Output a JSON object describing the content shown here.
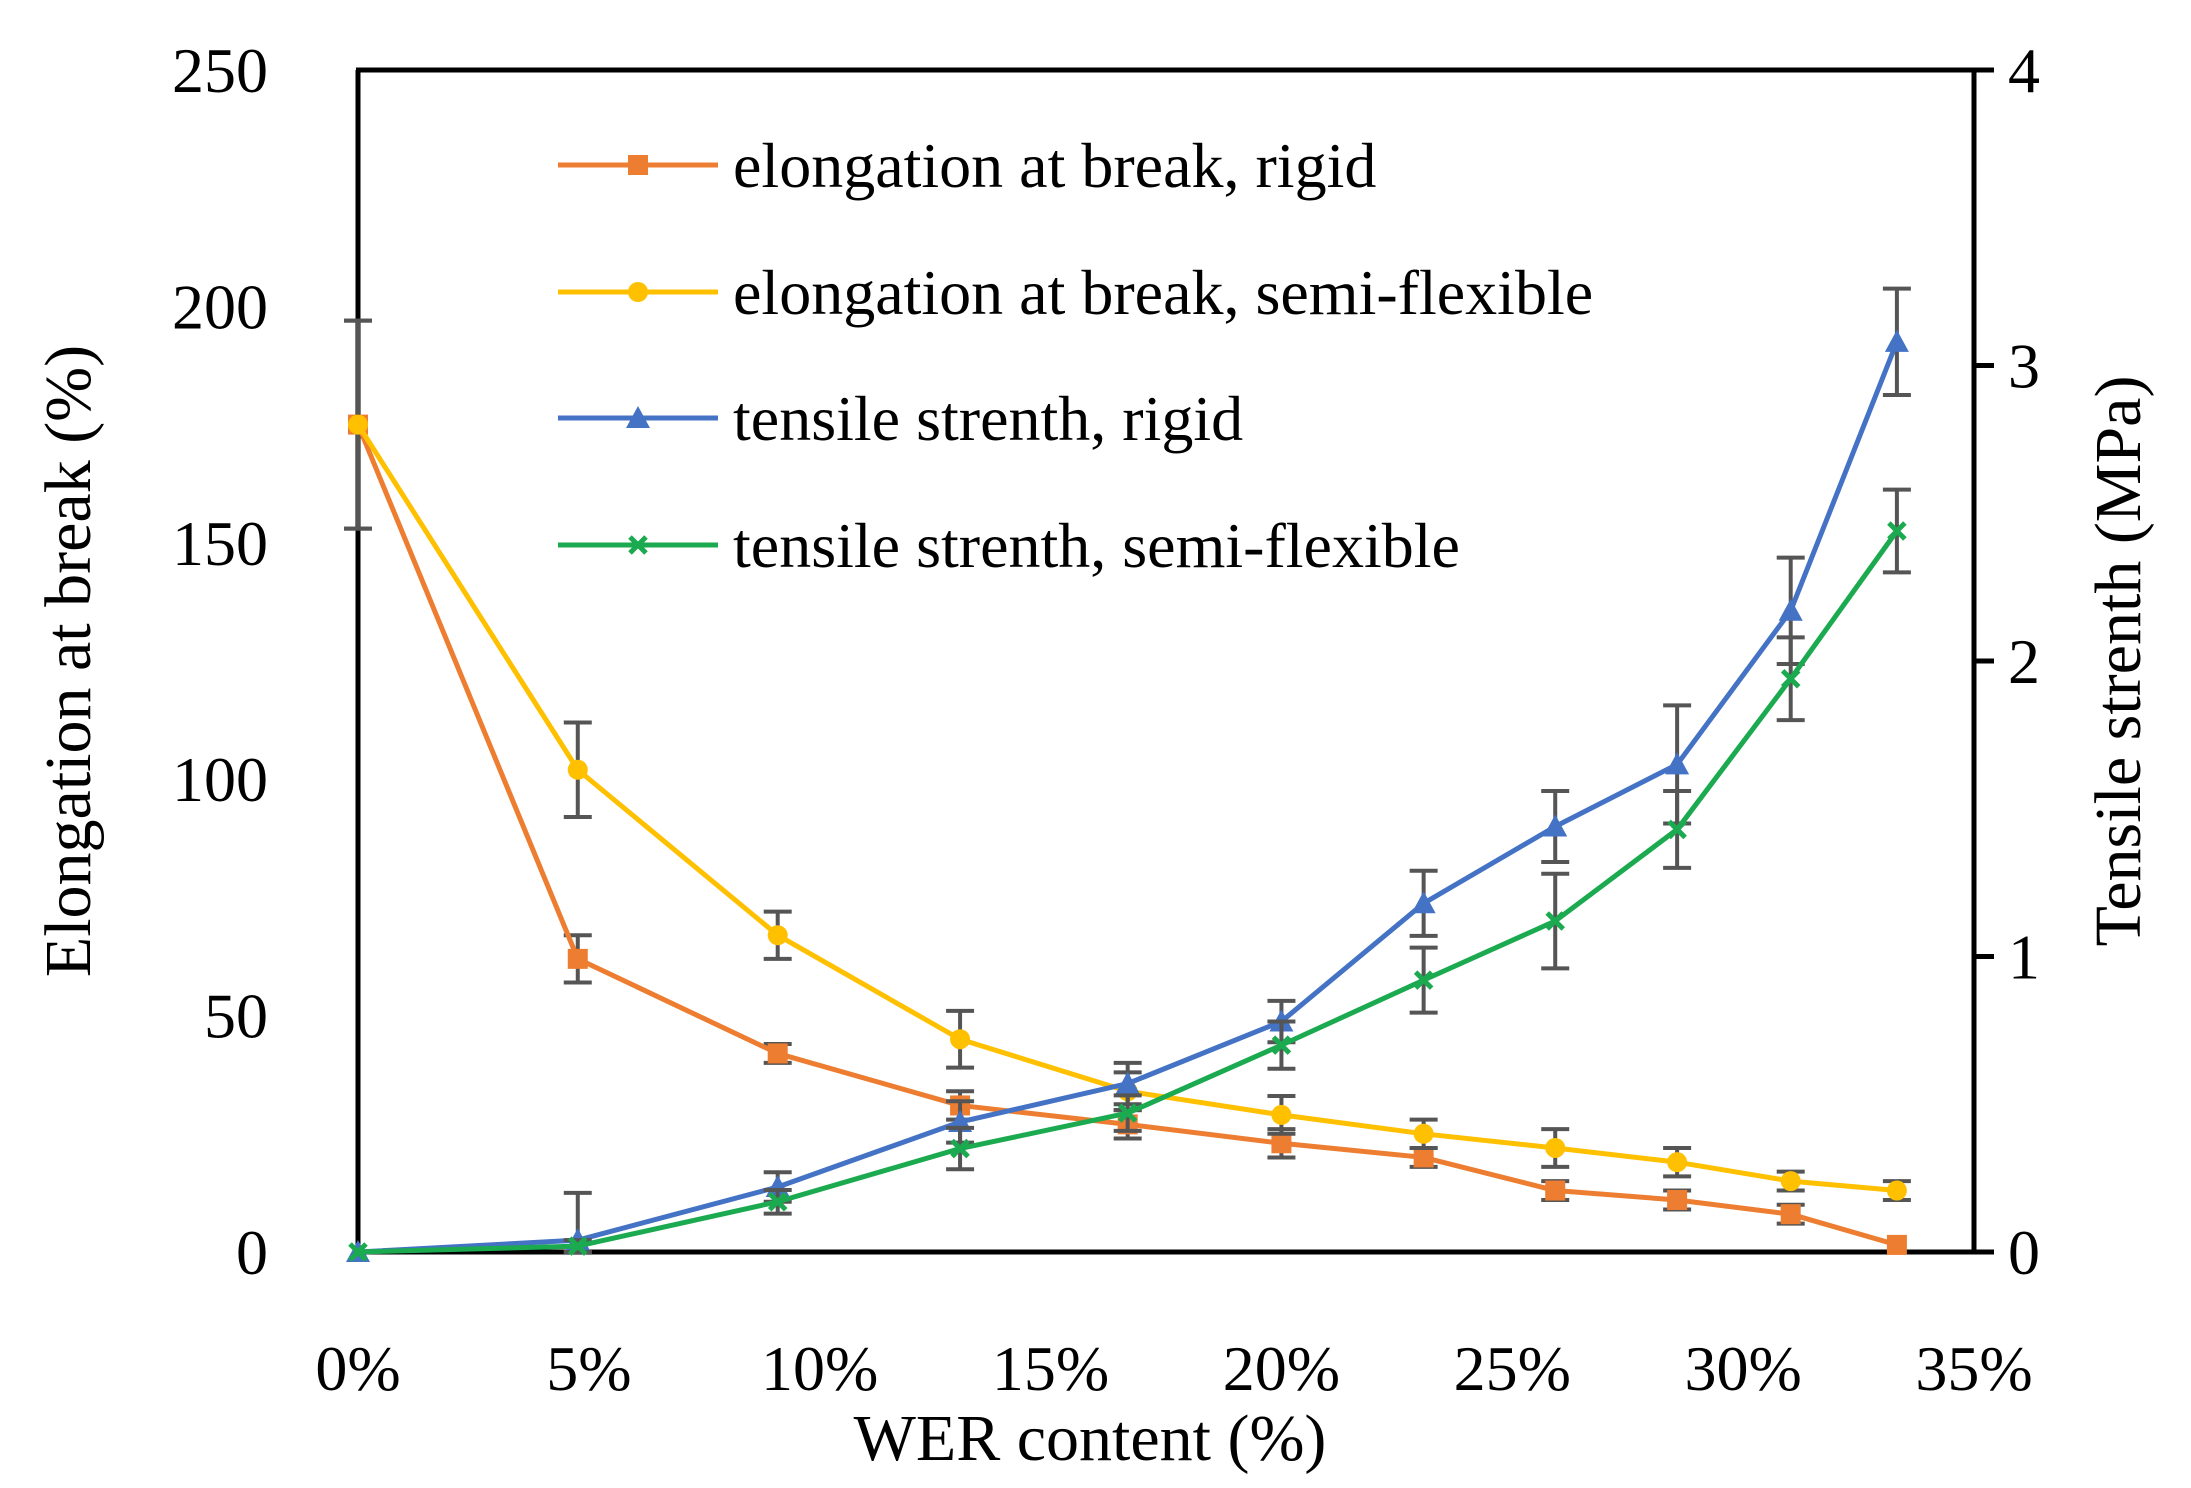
{
  "chart_data": {
    "type": "line",
    "title": "",
    "xlabel": "WER content (%)",
    "ylabel_left": "Elongation at break (%)",
    "ylabel_right": "Tensile strenth (MPa)",
    "x": [
      0,
      4.76,
      9.09,
      13.04,
      16.67,
      20.0,
      23.08,
      25.93,
      28.57,
      31.03,
      33.33
    ],
    "xlim": [
      0,
      35
    ],
    "xticks": [
      0,
      5,
      10,
      15,
      20,
      25,
      30,
      35
    ],
    "xtick_labels": [
      "0%",
      "5%",
      "10%",
      "15%",
      "20%",
      "25%",
      "30%",
      "35%"
    ],
    "ylim_left": [
      0,
      250
    ],
    "yticks_left": [
      0,
      50,
      100,
      150,
      200,
      250
    ],
    "ytick_labels_left": [
      "0",
      "50",
      "100",
      "150",
      "200",
      "250"
    ],
    "ylim_right": [
      0,
      4
    ],
    "yticks_right": [
      0,
      1,
      2,
      3,
      4
    ],
    "ytick_labels_right": [
      "0",
      "1",
      "2",
      "3",
      "4"
    ],
    "grid": false,
    "legend_position": "top-center",
    "series": [
      {
        "name": "elongation at break, rigid",
        "axis": "left",
        "color": "#ED7D31",
        "marker": "square",
        "values": [
          175,
          62,
          42,
          31,
          27,
          23,
          20,
          13,
          11,
          8,
          1.5
        ],
        "errors": [
          22,
          5,
          2,
          3,
          3,
          3,
          2,
          2,
          2,
          2,
          0
        ]
      },
      {
        "name": "elongation at break, semi-flexible",
        "axis": "left",
        "color": "#FFC000",
        "marker": "circle",
        "values": [
          175,
          102,
          67,
          45,
          34,
          29,
          25,
          22,
          19,
          15,
          13
        ],
        "errors": [
          22,
          10,
          5,
          6,
          4,
          4,
          3,
          4,
          3,
          2,
          2
        ]
      },
      {
        "name": "tensile strenth, rigid",
        "axis": "right",
        "color": "#4472C4",
        "marker": "triangle",
        "values": [
          0,
          0.04,
          0.22,
          0.44,
          0.57,
          0.78,
          1.18,
          1.44,
          1.65,
          2.17,
          3.08
        ],
        "errors": [
          0,
          0.16,
          0.05,
          0.07,
          0.07,
          0.07,
          0.11,
          0.12,
          0.2,
          0.18,
          0.18
        ]
      },
      {
        "name": "tensile strenth, semi-flexible",
        "axis": "right",
        "color": "#1BAA4F",
        "marker": "x",
        "values": [
          0,
          0.02,
          0.17,
          0.35,
          0.47,
          0.7,
          0.92,
          1.12,
          1.43,
          1.94,
          2.44
        ],
        "errors": [
          0,
          0.02,
          0.04,
          0.07,
          0.06,
          0.08,
          0.11,
          0.16,
          0.13,
          0.14,
          0.14
        ]
      }
    ]
  }
}
